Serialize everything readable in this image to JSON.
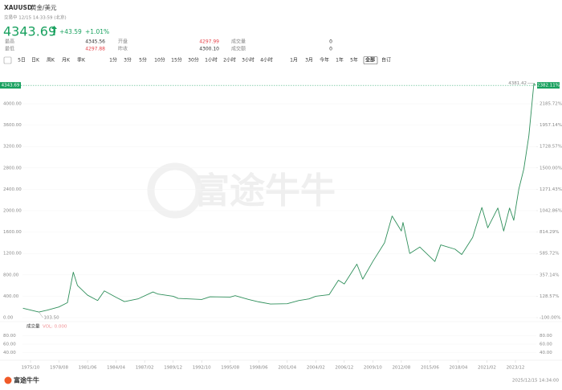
{
  "header": {
    "symbol": "XAUUSD",
    "name": "黄金/美元",
    "status": "交易中 12/15 14:33:59 (北京)",
    "price": "4343.69",
    "change": "+43.59",
    "change_pct": "+1.01%",
    "stats": [
      {
        "label": "最高",
        "value": "4345.56"
      },
      {
        "label": "开盘",
        "value": "4297.99"
      },
      {
        "label": "成交量",
        "value": "0"
      },
      {
        "label": "最低",
        "value": "4297.88"
      },
      {
        "label": "昨收",
        "value": "4300.10"
      },
      {
        "label": "成交额",
        "value": "0"
      }
    ]
  },
  "tabs": [
    "5日",
    "日K",
    "周K",
    "月K",
    "季K",
    "1分",
    "3分",
    "5分",
    "10分",
    "15分",
    "30分",
    "1小时",
    "2小时",
    "3小时",
    "4小时",
    "1月",
    "3月",
    "今年",
    "1年",
    "5年",
    "全部",
    "自订"
  ],
  "selected_tab": "全部",
  "chart_data": {
    "type": "line",
    "watermark": "富途牛牛",
    "x": [
      "1975/01",
      "1976/08",
      "1977/06",
      "1978/08",
      "1979/06",
      "1980/01",
      "1980/06",
      "1981/06",
      "1982/06",
      "1983/02",
      "1984/04",
      "1985/02",
      "1986/06",
      "1987/12",
      "1988/06",
      "1989/12",
      "1990/06",
      "1992/10",
      "1993/08",
      "1995/08",
      "1996/02",
      "1997/06",
      "1998/06",
      "1999/08",
      "2001/04",
      "2002/06",
      "2003/06",
      "2004/02",
      "2005/06",
      "2006/05",
      "2006/12",
      "2008/03",
      "2008/10",
      "2009/10",
      "2010/12",
      "2011/09",
      "2012/08",
      "2012/10",
      "2013/06",
      "2014/06",
      "2015/12",
      "2016/07",
      "2017/12",
      "2018/08",
      "2019/09",
      "2020/08",
      "2021/03",
      "2022/03",
      "2022/10",
      "2023/05",
      "2023/10",
      "2024/04",
      "2024/10",
      "2025/04",
      "2025/10",
      "2025/12"
    ],
    "series": [
      {
        "name": "XAUUSD",
        "color": "#2f8f5b",
        "values": [
          175,
          105,
          140,
          200,
          280,
          850,
          600,
          420,
          320,
          500,
          380,
          300,
          350,
          480,
          440,
          400,
          360,
          340,
          390,
          385,
          410,
          340,
          295,
          255,
          260,
          320,
          350,
          400,
          430,
          700,
          630,
          1000,
          720,
          1050,
          1400,
          1900,
          1620,
          1780,
          1200,
          1320,
          1050,
          1360,
          1280,
          1180,
          1500,
          2060,
          1680,
          2050,
          1620,
          2050,
          1820,
          2400,
          2780,
          3400,
          4381.42,
          4343.69
        ]
      }
    ],
    "xticks": [
      "1975/10",
      "1978/08",
      "1981/06",
      "1984/04",
      "1987/02",
      "1989/12",
      "1992/10",
      "1995/08",
      "1998/06",
      "2001/04",
      "2004/02",
      "2006/12",
      "2009/10",
      "2012/08",
      "2015/06",
      "2018/04",
      "2021/02",
      "2023/12"
    ],
    "ylim": [
      0,
      4400
    ],
    "yticks": [
      {
        "value": 4000,
        "label": "4000.00"
      },
      {
        "value": 3600,
        "label": "3600.00"
      },
      {
        "value": 3200,
        "label": "3200.00"
      },
      {
        "value": 2800,
        "label": "2800.00"
      },
      {
        "value": 2400,
        "label": "2400.00"
      },
      {
        "value": 2000,
        "label": "2000.00"
      },
      {
        "value": 1600,
        "label": "1600.00"
      },
      {
        "value": 1200,
        "label": "1200.00"
      },
      {
        "value": 800,
        "label": "800.00"
      },
      {
        "value": 400,
        "label": "400.00"
      },
      {
        "value": 0,
        "label": "0.00"
      }
    ],
    "y2lim": [
      -100,
      2414.29
    ],
    "y2ticks": [
      {
        "value": 2185.72,
        "label": "2185.72%"
      },
      {
        "value": 1957.14,
        "label": "1957.14%"
      },
      {
        "value": 1728.57,
        "label": "1728.57%"
      },
      {
        "value": 1500,
        "label": "1500.00%"
      },
      {
        "value": 1271.43,
        "label": "1271.43%"
      },
      {
        "value": 1042.86,
        "label": "1042.86%"
      },
      {
        "value": 814.29,
        "label": "814.29%"
      },
      {
        "value": 585.72,
        "label": "585.72%"
      },
      {
        "value": 357.14,
        "label": "357.14%"
      },
      {
        "value": 128.57,
        "label": "128.57%"
      },
      {
        "value": -100,
        "label": "-100.00%"
      }
    ],
    "last_price_label": "4343.69",
    "last_pct_label": "2382.11%",
    "annotations": [
      "4381.42",
      "103.50"
    ],
    "volume": {
      "title": "成交量",
      "label": "VOL: 0.000",
      "ylim": [
        30,
        90
      ],
      "yticks": [
        {
          "value": 80,
          "label": "80.00"
        },
        {
          "value": 60,
          "label": "60.00"
        },
        {
          "value": 40,
          "label": "40.00"
        }
      ]
    }
  },
  "footer": {
    "logo": "富途牛牛",
    "timestamp": "2025/12/15 14:34:00"
  }
}
